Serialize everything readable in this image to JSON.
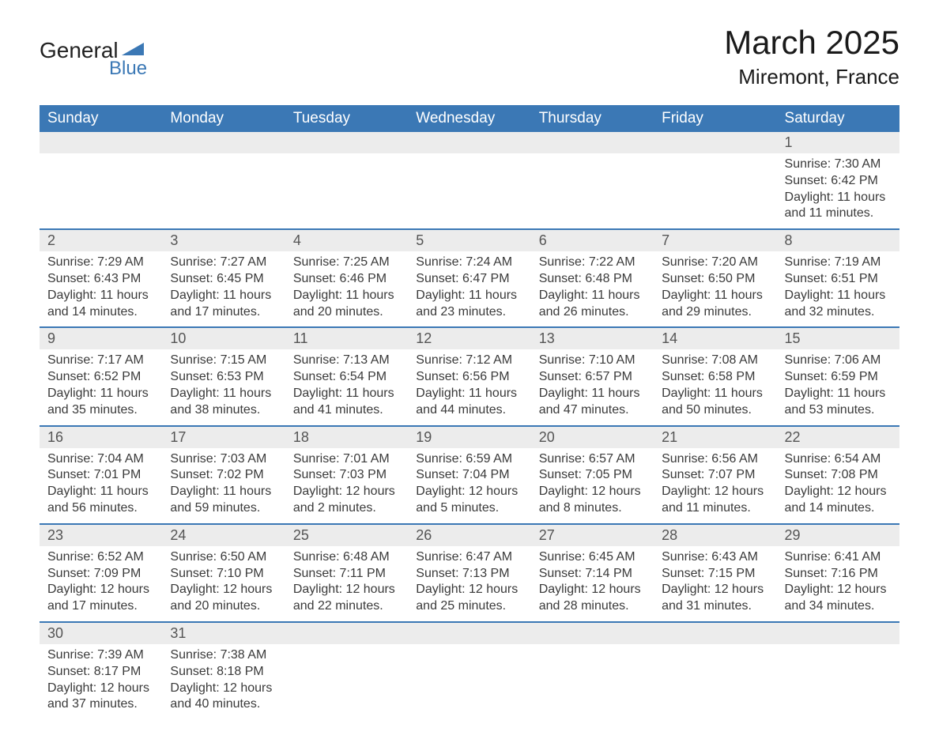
{
  "logo": {
    "text_general": "General",
    "text_blue": "Blue",
    "triangle_color": "#3b78b5"
  },
  "header": {
    "month_title": "March 2025",
    "location": "Miremont, France"
  },
  "colors": {
    "header_bg": "#3b78b5",
    "header_text": "#ffffff",
    "daynum_bg": "#ececec",
    "daynum_text": "#555555",
    "body_text": "#3a3a3a",
    "row_border": "#3b78b5"
  },
  "day_labels": [
    "Sunday",
    "Monday",
    "Tuesday",
    "Wednesday",
    "Thursday",
    "Friday",
    "Saturday"
  ],
  "weeks": [
    [
      {
        "empty": true
      },
      {
        "empty": true
      },
      {
        "empty": true
      },
      {
        "empty": true
      },
      {
        "empty": true
      },
      {
        "empty": true
      },
      {
        "num": "1",
        "sunrise": "Sunrise: 7:30 AM",
        "sunset": "Sunset: 6:42 PM",
        "daylight1": "Daylight: 11 hours",
        "daylight2": "and 11 minutes."
      }
    ],
    [
      {
        "num": "2",
        "sunrise": "Sunrise: 7:29 AM",
        "sunset": "Sunset: 6:43 PM",
        "daylight1": "Daylight: 11 hours",
        "daylight2": "and 14 minutes."
      },
      {
        "num": "3",
        "sunrise": "Sunrise: 7:27 AM",
        "sunset": "Sunset: 6:45 PM",
        "daylight1": "Daylight: 11 hours",
        "daylight2": "and 17 minutes."
      },
      {
        "num": "4",
        "sunrise": "Sunrise: 7:25 AM",
        "sunset": "Sunset: 6:46 PM",
        "daylight1": "Daylight: 11 hours",
        "daylight2": "and 20 minutes."
      },
      {
        "num": "5",
        "sunrise": "Sunrise: 7:24 AM",
        "sunset": "Sunset: 6:47 PM",
        "daylight1": "Daylight: 11 hours",
        "daylight2": "and 23 minutes."
      },
      {
        "num": "6",
        "sunrise": "Sunrise: 7:22 AM",
        "sunset": "Sunset: 6:48 PM",
        "daylight1": "Daylight: 11 hours",
        "daylight2": "and 26 minutes."
      },
      {
        "num": "7",
        "sunrise": "Sunrise: 7:20 AM",
        "sunset": "Sunset: 6:50 PM",
        "daylight1": "Daylight: 11 hours",
        "daylight2": "and 29 minutes."
      },
      {
        "num": "8",
        "sunrise": "Sunrise: 7:19 AM",
        "sunset": "Sunset: 6:51 PM",
        "daylight1": "Daylight: 11 hours",
        "daylight2": "and 32 minutes."
      }
    ],
    [
      {
        "num": "9",
        "sunrise": "Sunrise: 7:17 AM",
        "sunset": "Sunset: 6:52 PM",
        "daylight1": "Daylight: 11 hours",
        "daylight2": "and 35 minutes."
      },
      {
        "num": "10",
        "sunrise": "Sunrise: 7:15 AM",
        "sunset": "Sunset: 6:53 PM",
        "daylight1": "Daylight: 11 hours",
        "daylight2": "and 38 minutes."
      },
      {
        "num": "11",
        "sunrise": "Sunrise: 7:13 AM",
        "sunset": "Sunset: 6:54 PM",
        "daylight1": "Daylight: 11 hours",
        "daylight2": "and 41 minutes."
      },
      {
        "num": "12",
        "sunrise": "Sunrise: 7:12 AM",
        "sunset": "Sunset: 6:56 PM",
        "daylight1": "Daylight: 11 hours",
        "daylight2": "and 44 minutes."
      },
      {
        "num": "13",
        "sunrise": "Sunrise: 7:10 AM",
        "sunset": "Sunset: 6:57 PM",
        "daylight1": "Daylight: 11 hours",
        "daylight2": "and 47 minutes."
      },
      {
        "num": "14",
        "sunrise": "Sunrise: 7:08 AM",
        "sunset": "Sunset: 6:58 PM",
        "daylight1": "Daylight: 11 hours",
        "daylight2": "and 50 minutes."
      },
      {
        "num": "15",
        "sunrise": "Sunrise: 7:06 AM",
        "sunset": "Sunset: 6:59 PM",
        "daylight1": "Daylight: 11 hours",
        "daylight2": "and 53 minutes."
      }
    ],
    [
      {
        "num": "16",
        "sunrise": "Sunrise: 7:04 AM",
        "sunset": "Sunset: 7:01 PM",
        "daylight1": "Daylight: 11 hours",
        "daylight2": "and 56 minutes."
      },
      {
        "num": "17",
        "sunrise": "Sunrise: 7:03 AM",
        "sunset": "Sunset: 7:02 PM",
        "daylight1": "Daylight: 11 hours",
        "daylight2": "and 59 minutes."
      },
      {
        "num": "18",
        "sunrise": "Sunrise: 7:01 AM",
        "sunset": "Sunset: 7:03 PM",
        "daylight1": "Daylight: 12 hours",
        "daylight2": "and 2 minutes."
      },
      {
        "num": "19",
        "sunrise": "Sunrise: 6:59 AM",
        "sunset": "Sunset: 7:04 PM",
        "daylight1": "Daylight: 12 hours",
        "daylight2": "and 5 minutes."
      },
      {
        "num": "20",
        "sunrise": "Sunrise: 6:57 AM",
        "sunset": "Sunset: 7:05 PM",
        "daylight1": "Daylight: 12 hours",
        "daylight2": "and 8 minutes."
      },
      {
        "num": "21",
        "sunrise": "Sunrise: 6:56 AM",
        "sunset": "Sunset: 7:07 PM",
        "daylight1": "Daylight: 12 hours",
        "daylight2": "and 11 minutes."
      },
      {
        "num": "22",
        "sunrise": "Sunrise: 6:54 AM",
        "sunset": "Sunset: 7:08 PM",
        "daylight1": "Daylight: 12 hours",
        "daylight2": "and 14 minutes."
      }
    ],
    [
      {
        "num": "23",
        "sunrise": "Sunrise: 6:52 AM",
        "sunset": "Sunset: 7:09 PM",
        "daylight1": "Daylight: 12 hours",
        "daylight2": "and 17 minutes."
      },
      {
        "num": "24",
        "sunrise": "Sunrise: 6:50 AM",
        "sunset": "Sunset: 7:10 PM",
        "daylight1": "Daylight: 12 hours",
        "daylight2": "and 20 minutes."
      },
      {
        "num": "25",
        "sunrise": "Sunrise: 6:48 AM",
        "sunset": "Sunset: 7:11 PM",
        "daylight1": "Daylight: 12 hours",
        "daylight2": "and 22 minutes."
      },
      {
        "num": "26",
        "sunrise": "Sunrise: 6:47 AM",
        "sunset": "Sunset: 7:13 PM",
        "daylight1": "Daylight: 12 hours",
        "daylight2": "and 25 minutes."
      },
      {
        "num": "27",
        "sunrise": "Sunrise: 6:45 AM",
        "sunset": "Sunset: 7:14 PM",
        "daylight1": "Daylight: 12 hours",
        "daylight2": "and 28 minutes."
      },
      {
        "num": "28",
        "sunrise": "Sunrise: 6:43 AM",
        "sunset": "Sunset: 7:15 PM",
        "daylight1": "Daylight: 12 hours",
        "daylight2": "and 31 minutes."
      },
      {
        "num": "29",
        "sunrise": "Sunrise: 6:41 AM",
        "sunset": "Sunset: 7:16 PM",
        "daylight1": "Daylight: 12 hours",
        "daylight2": "and 34 minutes."
      }
    ],
    [
      {
        "num": "30",
        "sunrise": "Sunrise: 7:39 AM",
        "sunset": "Sunset: 8:17 PM",
        "daylight1": "Daylight: 12 hours",
        "daylight2": "and 37 minutes."
      },
      {
        "num": "31",
        "sunrise": "Sunrise: 7:38 AM",
        "sunset": "Sunset: 8:18 PM",
        "daylight1": "Daylight: 12 hours",
        "daylight2": "and 40 minutes."
      },
      {
        "empty": true
      },
      {
        "empty": true
      },
      {
        "empty": true
      },
      {
        "empty": true
      },
      {
        "empty": true
      }
    ]
  ]
}
